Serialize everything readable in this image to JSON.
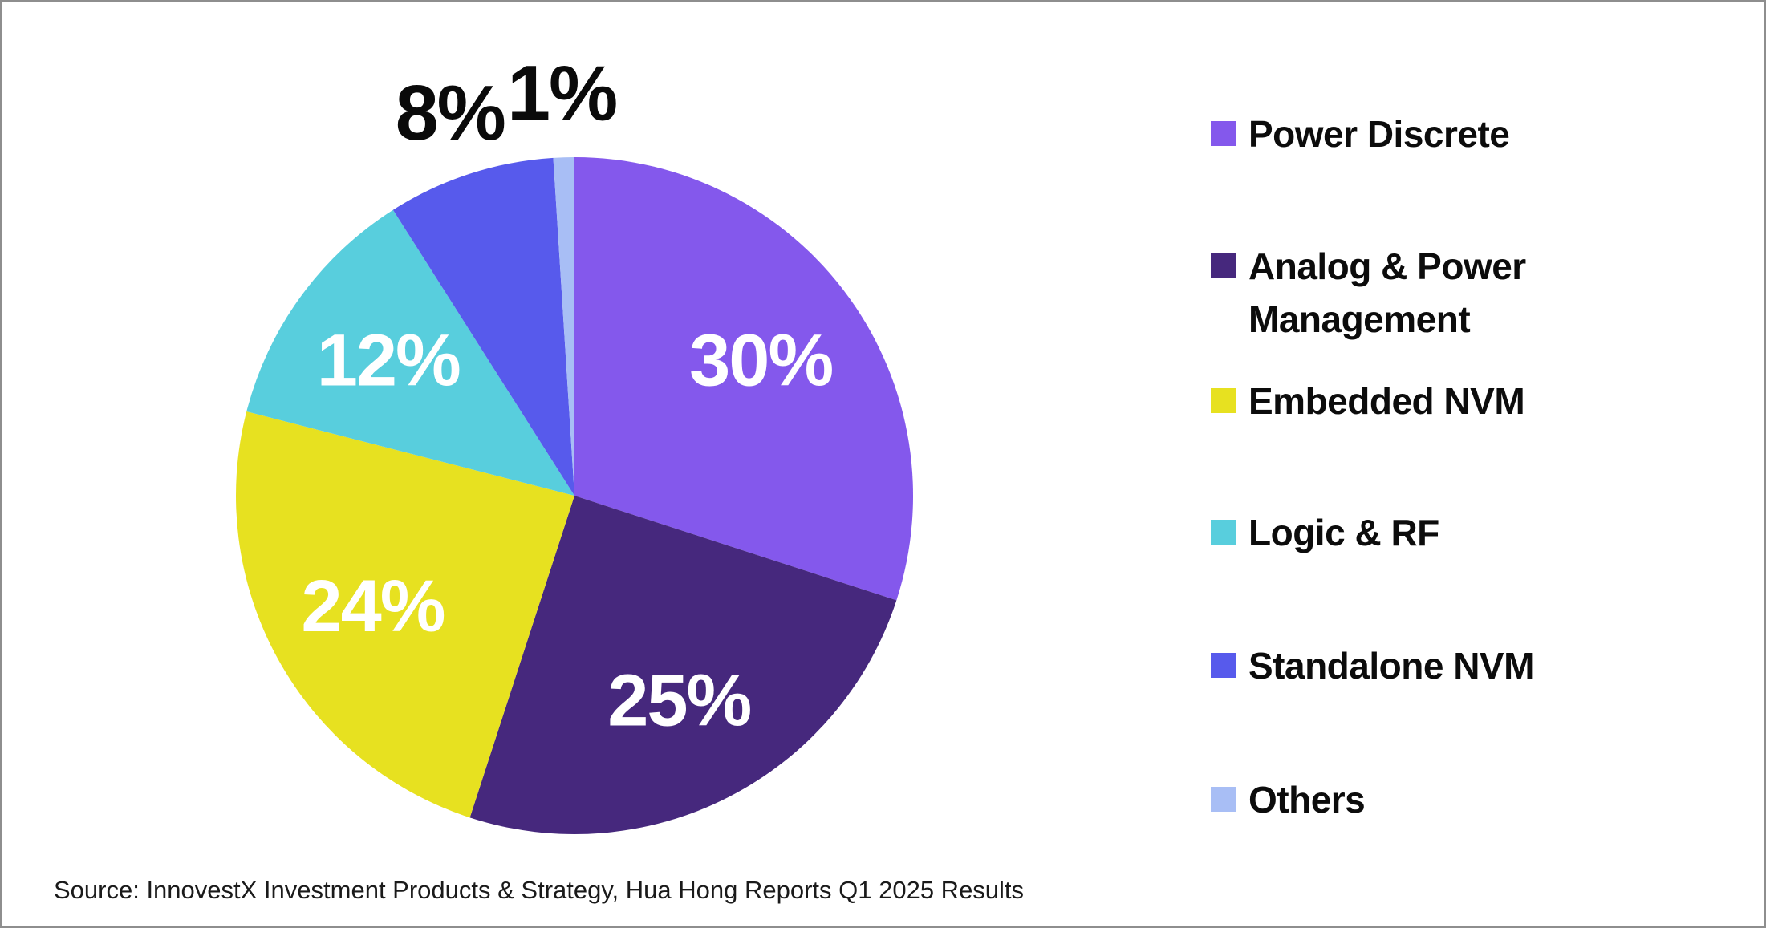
{
  "chart_data": {
    "type": "pie",
    "unit": "%",
    "direction": "clockwise",
    "start_angle_deg": 0,
    "legend_position": "right",
    "inside_label_color": "#ffffff",
    "outside_label_color": "#0a0a0a",
    "slices": [
      {
        "label": "Power Discrete",
        "value": 30,
        "pct_label": "30%",
        "color": "#8458EC",
        "label_placement": "inside"
      },
      {
        "label": "Analog & Power Management",
        "value": 25,
        "pct_label": "25%",
        "color": "#46287D",
        "label_placement": "inside"
      },
      {
        "label": "Embedded NVM",
        "value": 24,
        "pct_label": "24%",
        "color": "#E7E120",
        "label_placement": "inside"
      },
      {
        "label": "Logic & RF",
        "value": 12,
        "pct_label": "12%",
        "color": "#58CEDD",
        "label_placement": "inside"
      },
      {
        "label": "Standalone NVM",
        "value": 8,
        "pct_label": "8%",
        "color": "#575AEC",
        "label_placement": "outside"
      },
      {
        "label": "Others",
        "value": 1,
        "pct_label": "1%",
        "color": "#A8BEF5",
        "label_placement": "outside"
      }
    ]
  },
  "footer": {
    "source_text": "Source: InnovestX Investment Products & Strategy, Hua Hong Reports Q1 2025 Results"
  }
}
